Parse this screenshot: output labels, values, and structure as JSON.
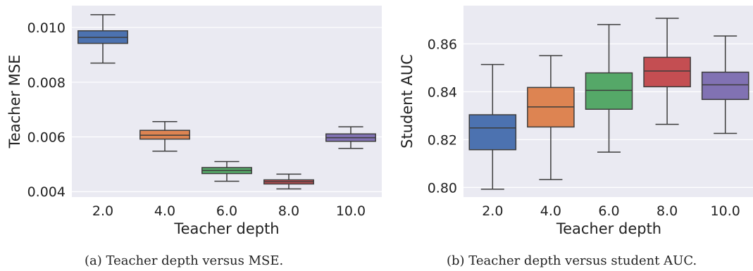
{
  "chart_data": [
    {
      "type": "box",
      "categories": [
        "2.0",
        "4.0",
        "6.0",
        "8.0",
        "10.0"
      ],
      "xlabel": "Teacher depth",
      "ylabel": "Teacher MSE",
      "ylim": [
        0.0038,
        0.0108
      ],
      "yticks": [
        0.004,
        0.006,
        0.008,
        0.01
      ],
      "ytick_labels": [
        "0.004",
        "0.006",
        "0.008",
        "0.010"
      ],
      "grid": true,
      "boxes": [
        {
          "whislo": 0.0087,
          "q1": 0.00942,
          "med": 0.00964,
          "q3": 0.00988,
          "whishi": 0.01047
        },
        {
          "whislo": 0.00548,
          "q1": 0.00592,
          "med": 0.00606,
          "q3": 0.00624,
          "whishi": 0.00656
        },
        {
          "whislo": 0.00438,
          "q1": 0.00466,
          "med": 0.00477,
          "q3": 0.00488,
          "whishi": 0.0051
        },
        {
          "whislo": 0.0041,
          "q1": 0.00428,
          "med": 0.00436,
          "q3": 0.00443,
          "whishi": 0.00464
        },
        {
          "whislo": 0.00558,
          "q1": 0.00584,
          "med": 0.00597,
          "q3": 0.00611,
          "whishi": 0.00637
        }
      ],
      "caption": "(a) Teacher depth versus MSE."
    },
    {
      "type": "box",
      "categories": [
        "2.0",
        "4.0",
        "6.0",
        "8.0",
        "10.0"
      ],
      "xlabel": "Teacher depth",
      "ylabel": "Student AUC",
      "ylim": [
        0.796,
        0.876
      ],
      "yticks": [
        0.8,
        0.82,
        0.84,
        0.86
      ],
      "ytick_labels": [
        "0.80",
        "0.82",
        "0.84",
        "0.86"
      ],
      "grid": true,
      "boxes": [
        {
          "whislo": 0.7993,
          "q1": 0.8158,
          "med": 0.8249,
          "q3": 0.8304,
          "whishi": 0.8514
        },
        {
          "whislo": 0.8033,
          "q1": 0.8253,
          "med": 0.8337,
          "q3": 0.8418,
          "whishi": 0.8551
        },
        {
          "whislo": 0.8148,
          "q1": 0.8327,
          "med": 0.8406,
          "q3": 0.8479,
          "whishi": 0.8681
        },
        {
          "whislo": 0.8264,
          "q1": 0.8421,
          "med": 0.8487,
          "q3": 0.8544,
          "whishi": 0.8707
        },
        {
          "whislo": 0.8226,
          "q1": 0.8368,
          "med": 0.8429,
          "q3": 0.8482,
          "whishi": 0.8633
        }
      ],
      "caption": "(b) Teacher depth versus student AUC."
    }
  ],
  "colors": {
    "panel_bg": "#eaeaf2",
    "grid": "#ffffff",
    "line": "#3d3d3d",
    "text": "#222222",
    "boxes": [
      "#4c72b0",
      "#dd8452",
      "#55a868",
      "#c44e52",
      "#8172b3"
    ]
  }
}
